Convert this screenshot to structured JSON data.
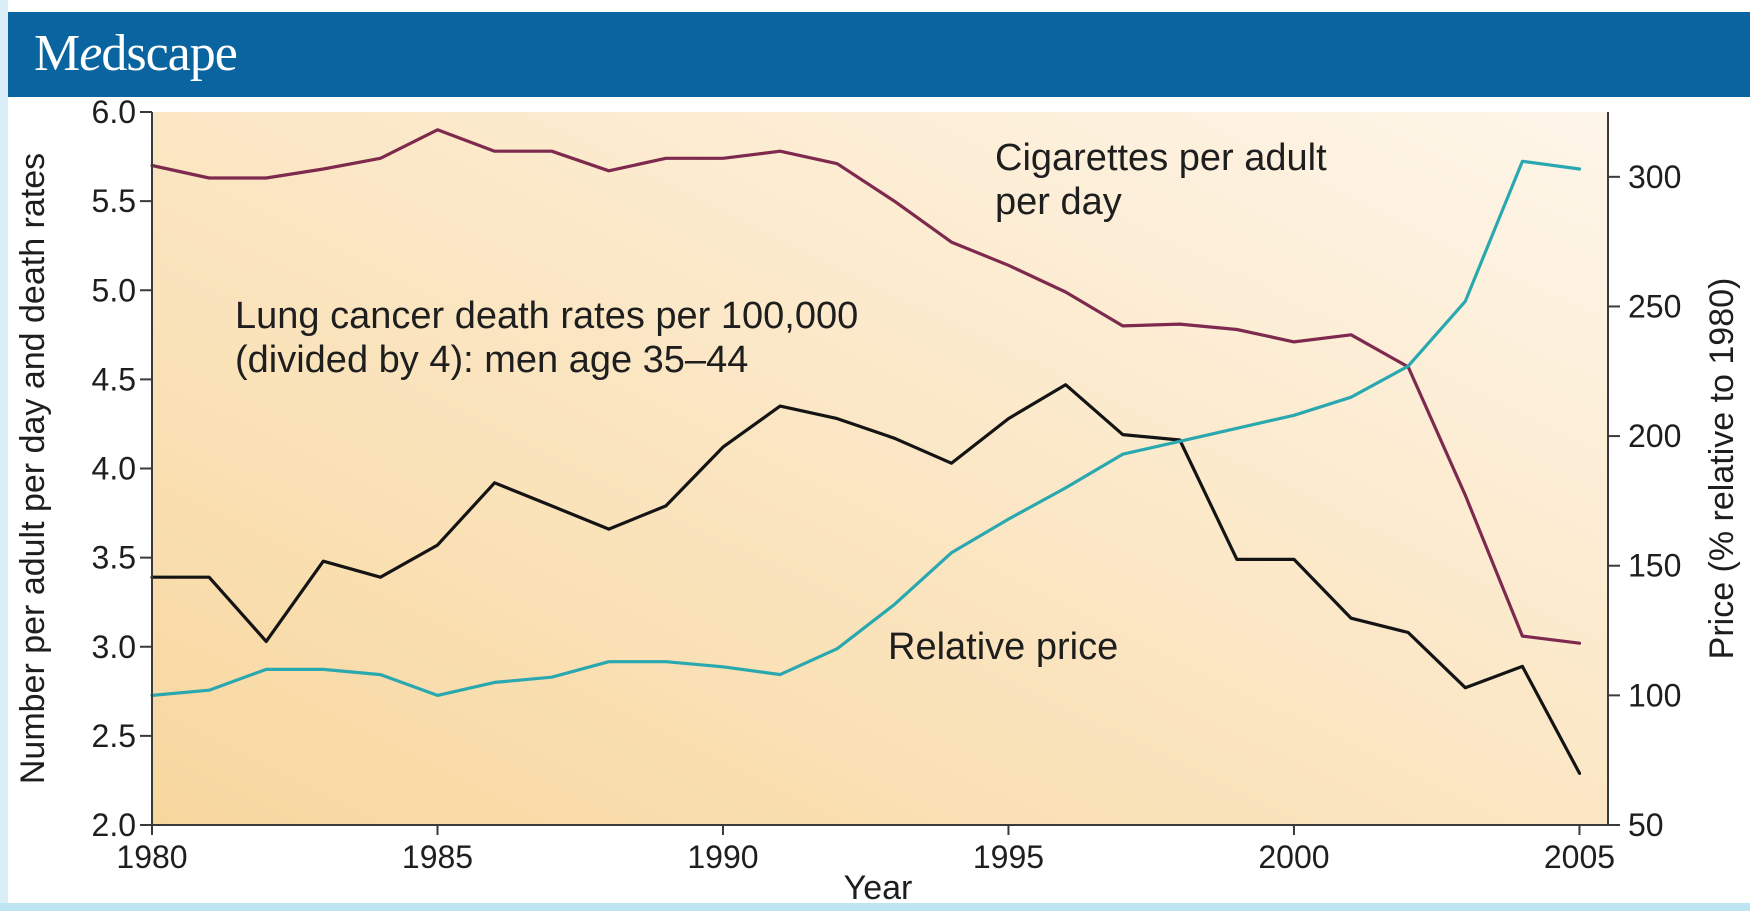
{
  "header": {
    "logo_text": "Medscape",
    "logo_parts": [
      "M",
      "e",
      "dscape"
    ],
    "bar_color": "#0a64a0"
  },
  "chart_data": {
    "type": "line",
    "xlabel": "Year",
    "ylabel": "Number per adult per day and death rates",
    "y2label": "Price (% relative to 1980)",
    "xlim": [
      1980,
      2005.5
    ],
    "ylim": [
      2.0,
      6.0
    ],
    "y2lim": [
      50,
      325
    ],
    "x_ticks": [
      "1980",
      "1985",
      "1990",
      "1995",
      "2000",
      "2005"
    ],
    "x_tick_values": [
      1980,
      1985,
      1990,
      1995,
      2000,
      2005
    ],
    "y_ticks": [
      "2.0",
      "2.5",
      "3.0",
      "3.5",
      "4.0",
      "4.5",
      "5.0",
      "5.5",
      "6.0"
    ],
    "y_tick_values": [
      2.0,
      2.5,
      3.0,
      3.5,
      4.0,
      4.5,
      5.0,
      5.5,
      6.0
    ],
    "y2_ticks": [
      "50",
      "100",
      "150",
      "200",
      "250",
      "300"
    ],
    "y2_tick_values": [
      50,
      100,
      150,
      200,
      250,
      300
    ],
    "grid": false,
    "background": [
      "#f8d79e",
      "#fef6ea"
    ],
    "x": [
      1980,
      1981,
      1982,
      1983,
      1984,
      1985,
      1986,
      1987,
      1988,
      1989,
      1990,
      1991,
      1992,
      1993,
      1994,
      1995,
      1996,
      1997,
      1998,
      1999,
      2000,
      2001,
      2002,
      2003,
      2004,
      2005
    ],
    "series": [
      {
        "label": "Cigarettes per adult per day",
        "label_lines": [
          "Cigarettes per adult",
          "per day"
        ],
        "axis": "left",
        "color": "#7e2a4e",
        "values": [
          5.7,
          5.63,
          5.63,
          5.68,
          5.74,
          5.9,
          5.78,
          5.78,
          5.67,
          5.74,
          5.74,
          5.78,
          5.71,
          5.5,
          5.27,
          5.14,
          4.99,
          4.8,
          4.81,
          4.78,
          4.71,
          4.75,
          4.57,
          3.85,
          3.06,
          3.02
        ]
      },
      {
        "label": "Lung cancer death rates per 100,000 (divided by 4): men age 35–44",
        "label_lines": [
          "Lung cancer death rates per 100,000",
          "(divided by 4): men age 35–44"
        ],
        "axis": "left",
        "color": "#141414",
        "values": [
          3.39,
          3.39,
          3.03,
          3.48,
          3.39,
          3.57,
          3.92,
          3.79,
          3.66,
          3.79,
          4.12,
          4.35,
          4.28,
          4.17,
          4.03,
          4.28,
          4.47,
          4.19,
          4.16,
          3.49,
          3.49,
          3.16,
          3.08,
          2.77,
          2.89,
          2.29
        ]
      },
      {
        "label": "Relative price",
        "label_lines": [
          "Relative price"
        ],
        "axis": "right",
        "color": "#2aa8b0",
        "values": [
          100,
          102,
          110,
          110,
          108,
          100,
          105,
          107,
          113,
          113,
          111,
          108,
          118,
          135,
          155,
          168,
          180,
          193,
          198,
          203,
          208,
          215,
          227,
          252,
          306,
          303
        ]
      }
    ]
  }
}
